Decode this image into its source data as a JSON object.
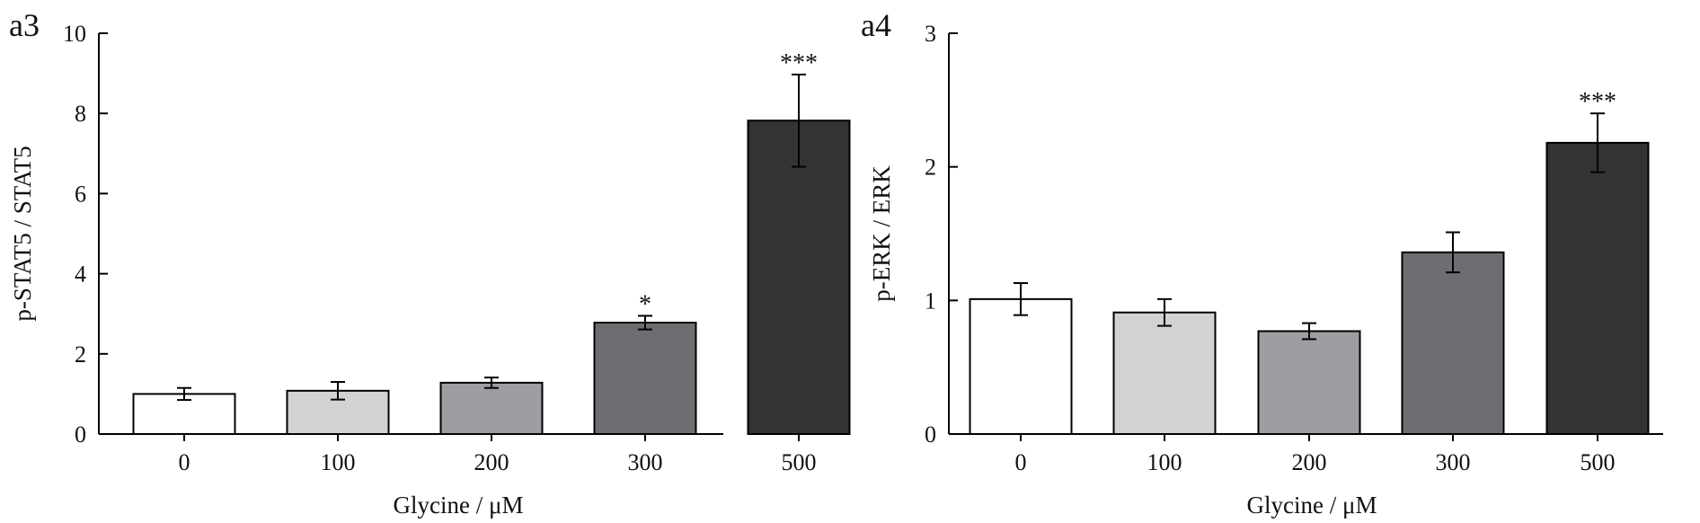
{
  "chart_data": [
    {
      "panel": "a3",
      "type": "bar",
      "categories": [
        "0",
        "100",
        "200",
        "300",
        "500"
      ],
      "values": [
        1.0,
        1.08,
        1.28,
        2.78,
        7.82
      ],
      "errors": [
        0.15,
        0.22,
        0.13,
        0.17,
        1.15
      ],
      "significance": [
        "",
        "",
        "",
        "*",
        "***"
      ],
      "colors": [
        "#ffffff",
        "#d1d2d4",
        "#9d9ea1",
        "#6d6e71",
        "#333333"
      ],
      "xlabel": "Glycine / μM",
      "ylabel": "p-STAT5 / STAT5",
      "ylim": [
        0,
        10
      ],
      "yticks": [
        0,
        2,
        4,
        6,
        8,
        10
      ]
    },
    {
      "panel": "a4",
      "type": "bar",
      "categories": [
        "0",
        "100",
        "200",
        "300",
        "500"
      ],
      "values": [
        1.01,
        0.91,
        0.77,
        1.36,
        2.18
      ],
      "errors": [
        0.12,
        0.1,
        0.06,
        0.15,
        0.22
      ],
      "significance": [
        "",
        "",
        "",
        "",
        "***"
      ],
      "colors": [
        "#ffffff",
        "#d1d2d4",
        "#9d9ea1",
        "#6d6e71",
        "#333333"
      ],
      "xlabel": "Glycine / μM",
      "ylabel": "p-ERK / ERK",
      "ylim": [
        0,
        3
      ],
      "yticks": [
        0,
        1,
        2,
        3
      ]
    }
  ]
}
